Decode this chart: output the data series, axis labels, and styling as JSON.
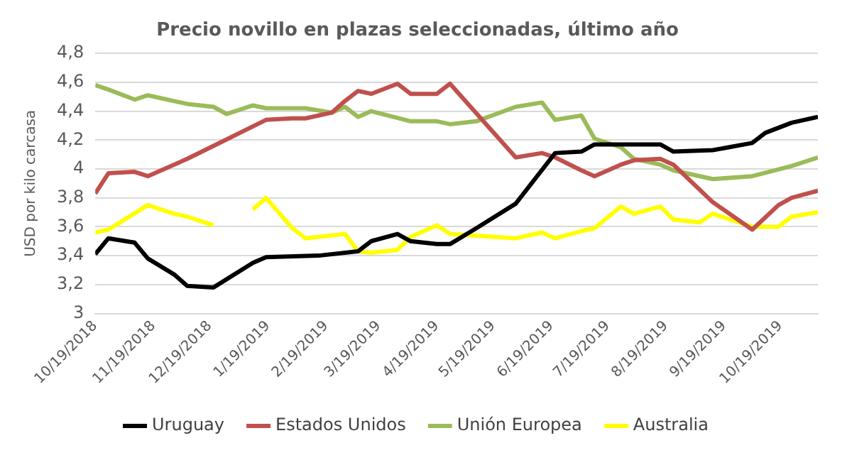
{
  "chart_data": {
    "type": "line",
    "title": "Precio novillo en plazas seleccionadas, último año",
    "ylabel": "USD por kilo carcasa",
    "xlim": [
      "2018-10-19",
      "2019-11-08"
    ],
    "xticks": [
      {
        "value": "2018-10-19",
        "label": "10/19/2018"
      },
      {
        "value": "2018-11-19",
        "label": "11/19/2018"
      },
      {
        "value": "2018-12-19",
        "label": "12/19/2018"
      },
      {
        "value": "2019-01-19",
        "label": "1/19/2019"
      },
      {
        "value": "2019-02-19",
        "label": "2/19/2019"
      },
      {
        "value": "2019-03-19",
        "label": "3/19/2019"
      },
      {
        "value": "2019-04-19",
        "label": "4/19/2019"
      },
      {
        "value": "2019-05-19",
        "label": "5/19/2019"
      },
      {
        "value": "2019-06-19",
        "label": "6/19/2019"
      },
      {
        "value": "2019-07-19",
        "label": "7/19/2019"
      },
      {
        "value": "2019-08-19",
        "label": "8/19/2019"
      },
      {
        "value": "2019-09-19",
        "label": "9/19/2019"
      },
      {
        "value": "2019-10-19",
        "label": "10/19/2019"
      }
    ],
    "ylim": [
      3,
      4.8
    ],
    "yticks": [
      {
        "value": 3,
        "label": "3"
      },
      {
        "value": 3.2,
        "label": "3,2"
      },
      {
        "value": 3.4,
        "label": "3,4"
      },
      {
        "value": 3.6,
        "label": "3,6"
      },
      {
        "value": 3.8,
        "label": "3,8"
      },
      {
        "value": 4,
        "label": "4"
      },
      {
        "value": 4.2,
        "label": "4,2"
      },
      {
        "value": 4.4,
        "label": "4,4"
      },
      {
        "value": 4.6,
        "label": "4,6"
      },
      {
        "value": 4.8,
        "label": "4,8"
      }
    ],
    "grid": "y",
    "legend": "bottom",
    "marker": "none",
    "line_style": "solid",
    "series": [
      {
        "name": "Uruguay",
        "color": "#000000",
        "x": [
          "2018-10-19",
          "2018-10-26",
          "2018-11-09",
          "2018-11-16",
          "2018-11-30",
          "2018-12-07",
          "2018-12-21",
          "2019-01-11",
          "2019-01-18",
          "2019-02-15",
          "2019-03-08",
          "2019-03-15",
          "2019-03-29",
          "2019-04-05",
          "2019-04-19",
          "2019-04-26",
          "2019-05-10",
          "2019-05-31",
          "2019-06-21",
          "2019-07-05",
          "2019-07-12",
          "2019-08-16",
          "2019-08-23",
          "2019-09-13",
          "2019-10-04",
          "2019-10-11",
          "2019-10-25",
          "2019-11-08"
        ],
        "values": [
          3.41,
          3.52,
          3.49,
          3.38,
          3.27,
          3.19,
          3.18,
          3.35,
          3.39,
          3.4,
          3.43,
          3.5,
          3.55,
          3.5,
          3.48,
          3.48,
          3.59,
          3.76,
          4.11,
          4.12,
          4.17,
          4.17,
          4.12,
          4.13,
          4.18,
          4.25,
          4.32,
          4.36
        ]
      },
      {
        "name": "Estados Unidos",
        "color": "#c0504d",
        "x": [
          "2018-10-19",
          "2018-10-26",
          "2018-11-09",
          "2018-11-16",
          "2018-12-07",
          "2018-12-21",
          "2019-01-18",
          "2019-02-01",
          "2019-02-08",
          "2019-02-22",
          "2019-03-01",
          "2019-03-08",
          "2019-03-15",
          "2019-03-29",
          "2019-04-05",
          "2019-04-19",
          "2019-04-26",
          "2019-05-31",
          "2019-06-14",
          "2019-06-21",
          "2019-07-05",
          "2019-07-12",
          "2019-07-26",
          "2019-08-02",
          "2019-08-16",
          "2019-08-23",
          "2019-09-13",
          "2019-10-04",
          "2019-10-18",
          "2019-10-25",
          "2019-11-08"
        ],
        "values": [
          3.83,
          3.97,
          3.98,
          3.95,
          4.07,
          4.16,
          4.34,
          4.35,
          4.35,
          4.39,
          4.47,
          4.54,
          4.52,
          4.59,
          4.52,
          4.52,
          4.59,
          4.08,
          4.11,
          4.08,
          3.99,
          3.95,
          4.03,
          4.06,
          4.07,
          4.03,
          3.77,
          3.58,
          3.75,
          3.8,
          3.85
        ]
      },
      {
        "name": "Unión Europea",
        "color": "#9bbb59",
        "x": [
          "2018-10-19",
          "2018-10-26",
          "2018-11-09",
          "2018-11-16",
          "2018-12-07",
          "2018-12-21",
          "2018-12-28",
          "2019-01-11",
          "2019-01-18",
          "2019-02-01",
          "2019-02-08",
          "2019-02-22",
          "2019-03-01",
          "2019-03-08",
          "2019-03-15",
          "2019-04-05",
          "2019-04-19",
          "2019-04-26",
          "2019-05-10",
          "2019-05-31",
          "2019-06-14",
          "2019-06-21",
          "2019-07-05",
          "2019-07-12",
          "2019-07-26",
          "2019-08-02",
          "2019-08-16",
          "2019-08-23",
          "2019-09-13",
          "2019-10-04",
          "2019-10-25",
          "2019-11-08"
        ],
        "values": [
          4.58,
          4.55,
          4.48,
          4.51,
          4.45,
          4.43,
          4.38,
          4.44,
          4.42,
          4.42,
          4.42,
          4.39,
          4.43,
          4.36,
          4.4,
          4.33,
          4.33,
          4.31,
          4.33,
          4.43,
          4.46,
          4.34,
          4.37,
          4.21,
          4.15,
          4.07,
          4.03,
          3.99,
          3.93,
          3.95,
          4.02,
          4.08
        ]
      },
      {
        "name": "Australia",
        "color": "#ffff00",
        "x": [
          "2018-10-19",
          "2018-10-26",
          "2018-11-16",
          "2018-11-30",
          "2018-12-07",
          "2018-12-21",
          "2018-12-28",
          "2019-01-11",
          "2019-01-18",
          "2019-02-01",
          "2019-02-08",
          "2019-02-22",
          "2019-03-01",
          "2019-03-08",
          "2019-03-15",
          "2019-03-29",
          "2019-04-05",
          "2019-04-19",
          "2019-04-26",
          "2019-05-31",
          "2019-06-14",
          "2019-06-21",
          "2019-07-05",
          "2019-07-12",
          "2019-07-26",
          "2019-08-02",
          "2019-08-16",
          "2019-08-23",
          "2019-09-06",
          "2019-09-13",
          "2019-10-04",
          "2019-10-18",
          "2019-10-25",
          "2019-11-08"
        ],
        "values": [
          3.56,
          3.58,
          3.75,
          3.69,
          3.67,
          3.61,
          null,
          3.72,
          3.8,
          3.59,
          3.52,
          3.54,
          3.55,
          3.43,
          3.42,
          3.44,
          3.53,
          3.61,
          3.55,
          3.52,
          3.56,
          3.52,
          3.57,
          3.59,
          3.74,
          3.69,
          3.74,
          3.65,
          3.63,
          3.69,
          3.6,
          3.6,
          3.67,
          3.7
        ]
      }
    ]
  }
}
